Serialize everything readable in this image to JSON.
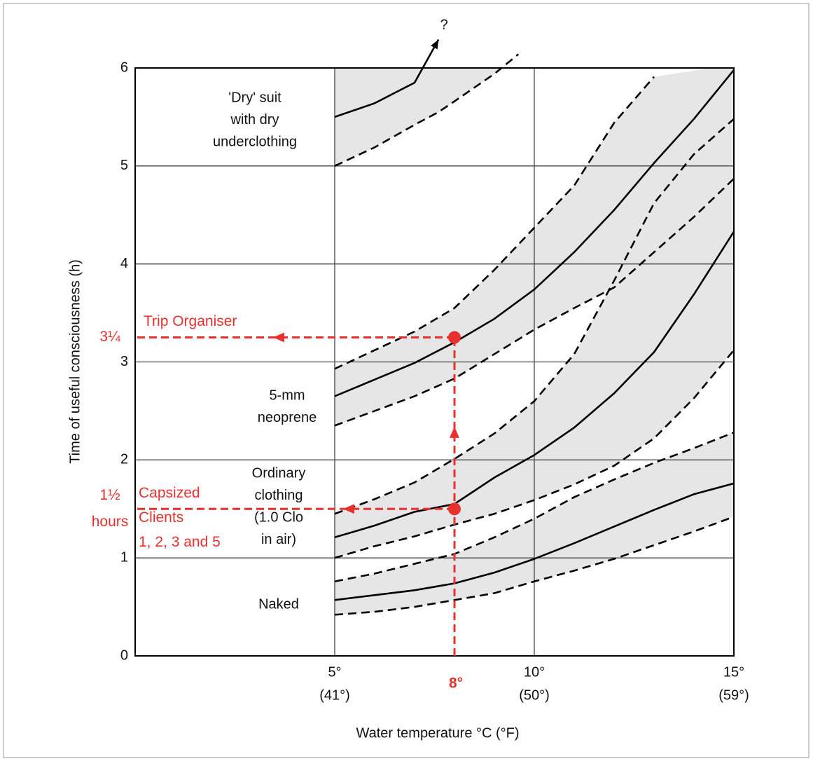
{
  "chart_data": {
    "type": "band",
    "xlabel": "Water temperature °C (°F)",
    "ylabel": "Time of useful consciousness (h)",
    "xlim": [
      0,
      15
    ],
    "ylim": [
      0,
      6
    ],
    "xticks": [
      {
        "value": 5,
        "label": "5°",
        "sublabel": "(41°)"
      },
      {
        "value": 10,
        "label": "10°",
        "sublabel": "(50°)"
      },
      {
        "value": 15,
        "label": "15°",
        "sublabel": "(59°)"
      }
    ],
    "yticks": [
      0,
      1,
      2,
      3,
      4,
      5,
      6
    ],
    "grid": true,
    "line_color": "#000000",
    "band_color": "#e6e6e6",
    "bands": [
      {
        "label_lines": [
          "Naked"
        ],
        "x": [
          5,
          6,
          7,
          8,
          9,
          10,
          11,
          12,
          13,
          14,
          15
        ],
        "lower": [
          0.42,
          0.45,
          0.5,
          0.57,
          0.64,
          0.76,
          0.87,
          0.99,
          1.13,
          1.27,
          1.42
        ],
        "middle": [
          0.57,
          0.62,
          0.67,
          0.74,
          0.85,
          0.99,
          1.15,
          1.32,
          1.49,
          1.65,
          1.76
        ],
        "upper": [
          0.76,
          0.84,
          0.94,
          1.04,
          1.21,
          1.4,
          1.62,
          1.8,
          1.97,
          2.12,
          2.28
        ]
      },
      {
        "label_lines": [
          "Ordinary",
          "clothing",
          "(1.0 Clo",
          "in air)"
        ],
        "x": [
          5,
          6,
          7,
          8,
          9,
          10,
          11,
          12,
          13,
          14,
          15
        ],
        "lower": [
          1.0,
          1.12,
          1.22,
          1.34,
          1.45,
          1.59,
          1.75,
          1.94,
          2.22,
          2.63,
          3.12
        ],
        "middle": [
          1.21,
          1.33,
          1.47,
          1.55,
          1.82,
          2.05,
          2.33,
          2.68,
          3.1,
          3.69,
          4.33
        ],
        "upper": [
          1.45,
          1.6,
          1.77,
          2.01,
          2.27,
          2.6,
          3.08,
          3.83,
          4.62,
          5.12,
          5.48
        ]
      },
      {
        "label_lines": [
          "5-mm",
          "neoprene"
        ],
        "x": [
          5,
          6,
          7,
          8,
          9,
          10,
          11,
          12,
          13,
          14,
          15
        ],
        "lower": [
          2.35,
          2.5,
          2.65,
          2.83,
          3.08,
          3.33,
          3.55,
          3.76,
          4.12,
          4.48,
          4.87
        ],
        "middle": [
          2.65,
          2.82,
          2.99,
          3.2,
          3.44,
          3.74,
          4.12,
          4.55,
          5.03,
          5.48,
          5.98
        ],
        "upper": [
          2.93,
          3.12,
          3.31,
          3.55,
          3.94,
          4.37,
          4.8,
          5.44,
          5.91,
          null,
          null
        ]
      },
      {
        "label_lines": [
          "'Dry' suit",
          "with dry",
          "underclothing"
        ],
        "arrow_label": "?",
        "x": [
          5,
          6,
          7,
          7.6,
          8,
          9,
          9.6
        ],
        "lower": [
          5.0,
          5.19,
          5.42,
          5.55,
          5.66,
          5.94,
          6.14
        ],
        "middle": [
          5.5,
          5.64,
          5.85,
          6.29,
          null,
          null,
          null
        ]
      }
    ],
    "annotations": {
      "color": "#e8312f",
      "point_x": 8,
      "x_label": "8°",
      "readings": [
        {
          "y": 3.25,
          "value_label_lines": [
            "3¼"
          ],
          "text_lines": [
            "Trip Organiser"
          ]
        },
        {
          "y": 1.5,
          "value_label_lines": [
            "1½",
            "hours"
          ],
          "text_lines": [
            "Capsized",
            "Clients",
            "1, 2, 3 and 5"
          ]
        }
      ]
    }
  }
}
